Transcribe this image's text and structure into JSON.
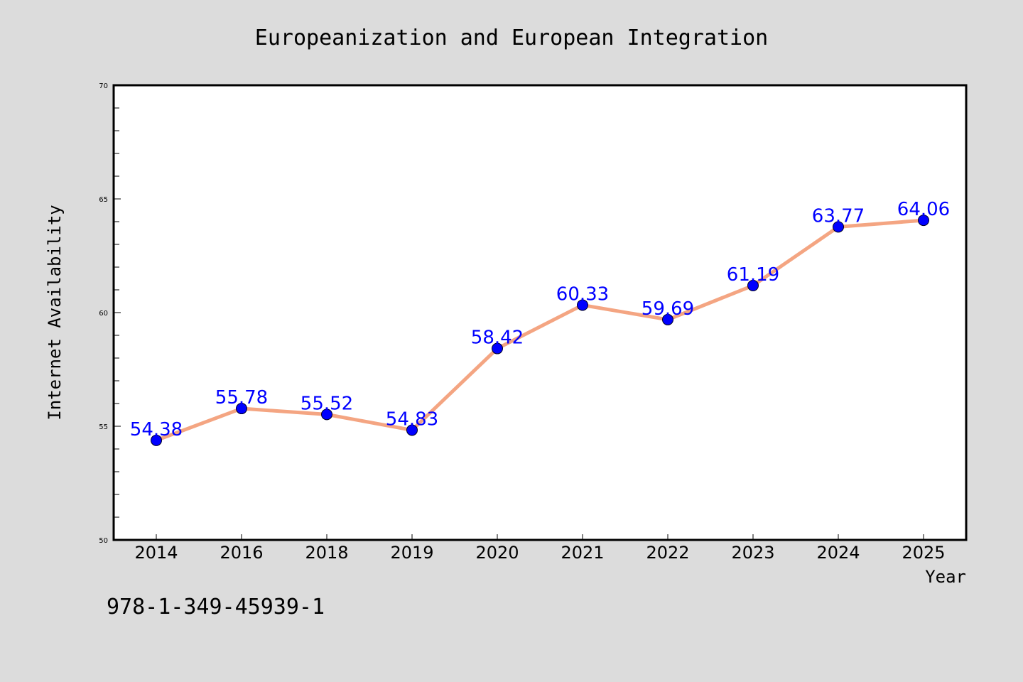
{
  "chart_data": {
    "type": "line",
    "title": "Europeanization and European Integration",
    "xlabel": "Year",
    "ylabel": "Internet Availability",
    "categories": [
      "2014",
      "2016",
      "2018",
      "2019",
      "2020",
      "2021",
      "2022",
      "2023",
      "2024",
      "2025"
    ],
    "series": [
      {
        "values": [
          54.38,
          55.78,
          55.52,
          54.83,
          58.42,
          60.33,
          59.69,
          61.19,
          63.77,
          64.06
        ],
        "value_labels": [
          "54.38",
          "55.78",
          "55.52",
          "54.83",
          "58.42",
          "60.33",
          "59.69",
          "61.19",
          "63.77",
          "64.06"
        ],
        "line_color": "#f4a582",
        "marker_color": "#0000ff",
        "label_color": "#0000ff"
      }
    ],
    "ylim": [
      50,
      70
    ],
    "y_major_ticks": [
      50,
      55,
      60,
      65,
      70
    ],
    "y_major_tick_labels": [
      "50",
      "55",
      "60",
      "65",
      "70"
    ],
    "y_minor_step": 1,
    "grid": false,
    "legend": "none"
  },
  "footer": {
    "isbn": "978-1-349-45939-1"
  },
  "colors": {
    "background": "#dcdcdc",
    "plot_background": "#ffffff",
    "axis": "#000000"
  }
}
